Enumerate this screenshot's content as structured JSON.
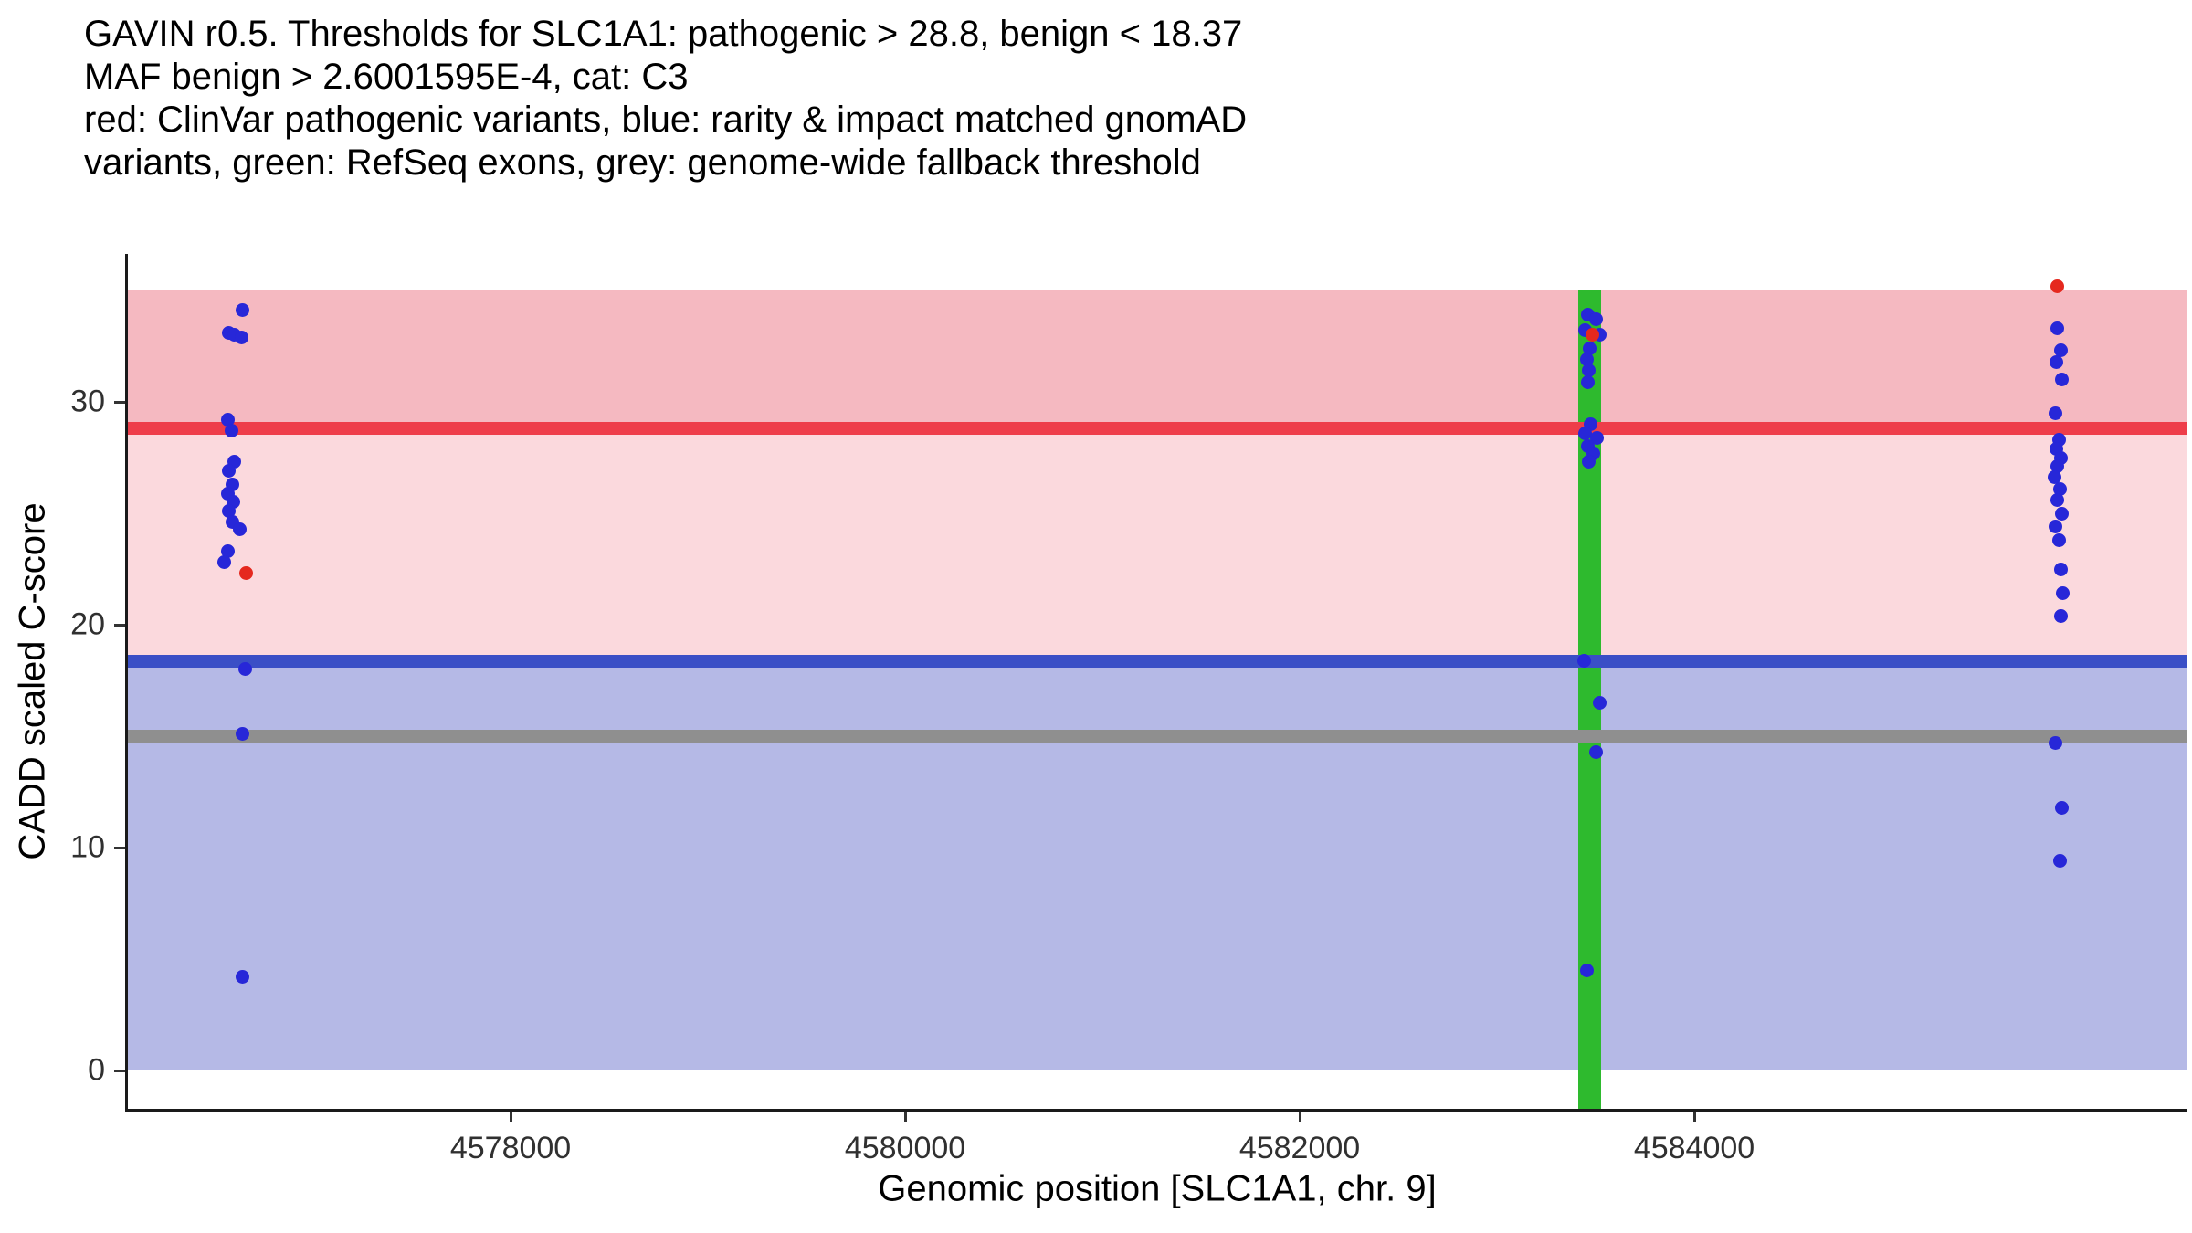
{
  "title_lines": [
    "GAVIN r0.5. Thresholds for SLC1A1: pathogenic > 28.8, benign < 18.37",
    "MAF benign > 2.6001595E-4, cat: C3",
    "red: ClinVar pathogenic variants, blue: rarity & impact matched gnomAD",
    "variants, green: RefSeq exons, grey: genome-wide fallback threshold"
  ],
  "thresholds": {
    "gene": "SLC1A1",
    "pathogenic": 28.8,
    "benign": 18.37,
    "maf_benign": "2.6001595E-4",
    "category": "C3",
    "fallback": 15
  },
  "chart_data": {
    "type": "scatter",
    "title": "GAVIN r0.5. Thresholds for SLC1A1: pathogenic > 28.8, benign < 18.37; MAF benign > 2.6001595E-4, cat: C3",
    "xlabel": "Genomic position [SLC1A1, chr. 9]",
    "ylabel": "CADD scaled C-score",
    "xlim": [
      4576060,
      4586500
    ],
    "ylim": [
      -1.72,
      36.64
    ],
    "x_ticks": [
      4578000,
      4580000,
      4582000,
      4584000
    ],
    "x_tick_labels": [
      "4578000",
      "4580000",
      "4582000",
      "4584000"
    ],
    "y_ticks": [
      0,
      10,
      20,
      30
    ],
    "y_tick_labels": [
      "0",
      "10",
      "20",
      "30"
    ],
    "grid": false,
    "legend": "none",
    "point_radius": 7.5,
    "bands": [
      {
        "name": "pathogenic-zone",
        "y0": 28.8,
        "y1": 35.0,
        "color": "#f5b9c1"
      },
      {
        "name": "intermediate-zone",
        "y0": 18.37,
        "y1": 28.8,
        "color": "#fbd9dd"
      },
      {
        "name": "benign-zone",
        "y0": 0.0,
        "y1": 18.37,
        "color": "#b5b9e6"
      }
    ],
    "vbands": [
      {
        "name": "refseq-exon-band",
        "x0": 4583410,
        "x1": 4583530,
        "y0": -1.72,
        "y1": 35.0,
        "color": "#2eba2e"
      }
    ],
    "hlines": [
      {
        "name": "pathogenic-threshold",
        "y": 28.8,
        "color": "#ee3d4a",
        "thickness": 14
      },
      {
        "name": "benign-threshold",
        "y": 18.37,
        "color": "#3a4fc6",
        "thickness": 14
      },
      {
        "name": "genome-wide-fallback-threshold",
        "y": 15.0,
        "color": "#8f8f8f",
        "thickness": 14
      }
    ],
    "series": [
      {
        "name": "gnomad-matched-variant",
        "color": "#2727d8",
        "points": [
          [
            4576640,
            34.1
          ],
          [
            4576570,
            33.1
          ],
          [
            4576600,
            33.0
          ],
          [
            4576635,
            32.9
          ],
          [
            4576565,
            29.2
          ],
          [
            4576585,
            28.7
          ],
          [
            4576600,
            27.3
          ],
          [
            4576570,
            26.9
          ],
          [
            4576590,
            26.3
          ],
          [
            4576565,
            25.9
          ],
          [
            4576595,
            25.5
          ],
          [
            4576570,
            25.1
          ],
          [
            4576590,
            24.6
          ],
          [
            4576625,
            24.3
          ],
          [
            4576565,
            23.3
          ],
          [
            4576548,
            22.8
          ],
          [
            4576655,
            18.0
          ],
          [
            4576640,
            15.1
          ],
          [
            4576640,
            4.2
          ],
          [
            4583460,
            33.9
          ],
          [
            4583500,
            33.7
          ],
          [
            4583445,
            33.2
          ],
          [
            4583520,
            33.0
          ],
          [
            4583470,
            32.4
          ],
          [
            4583455,
            31.9
          ],
          [
            4583465,
            31.4
          ],
          [
            4583460,
            30.9
          ],
          [
            4583475,
            29.0
          ],
          [
            4583445,
            28.6
          ],
          [
            4583505,
            28.4
          ],
          [
            4583460,
            28.0
          ],
          [
            4583490,
            27.7
          ],
          [
            4583465,
            27.3
          ],
          [
            4583440,
            18.4
          ],
          [
            4583520,
            16.5
          ],
          [
            4583500,
            14.3
          ],
          [
            4583455,
            4.5
          ],
          [
            4585840,
            33.3
          ],
          [
            4585860,
            32.3
          ],
          [
            4585835,
            31.8
          ],
          [
            4585865,
            31.0
          ],
          [
            4585830,
            29.5
          ],
          [
            4585850,
            28.3
          ],
          [
            4585835,
            27.9
          ],
          [
            4585860,
            27.5
          ],
          [
            4585840,
            27.1
          ],
          [
            4585828,
            26.6
          ],
          [
            4585855,
            26.1
          ],
          [
            4585838,
            25.6
          ],
          [
            4585865,
            25.0
          ],
          [
            4585832,
            24.4
          ],
          [
            4585850,
            23.8
          ],
          [
            4585858,
            22.5
          ],
          [
            4585868,
            21.4
          ],
          [
            4585858,
            20.4
          ],
          [
            4585832,
            14.7
          ],
          [
            4585865,
            11.8
          ],
          [
            4585852,
            9.4
          ]
        ]
      },
      {
        "name": "clinvar-pathogenic-variant",
        "color": "#e5281e",
        "points": [
          [
            4576660,
            22.3
          ],
          [
            4583485,
            33.0
          ],
          [
            4585838,
            35.2
          ]
        ]
      }
    ]
  }
}
